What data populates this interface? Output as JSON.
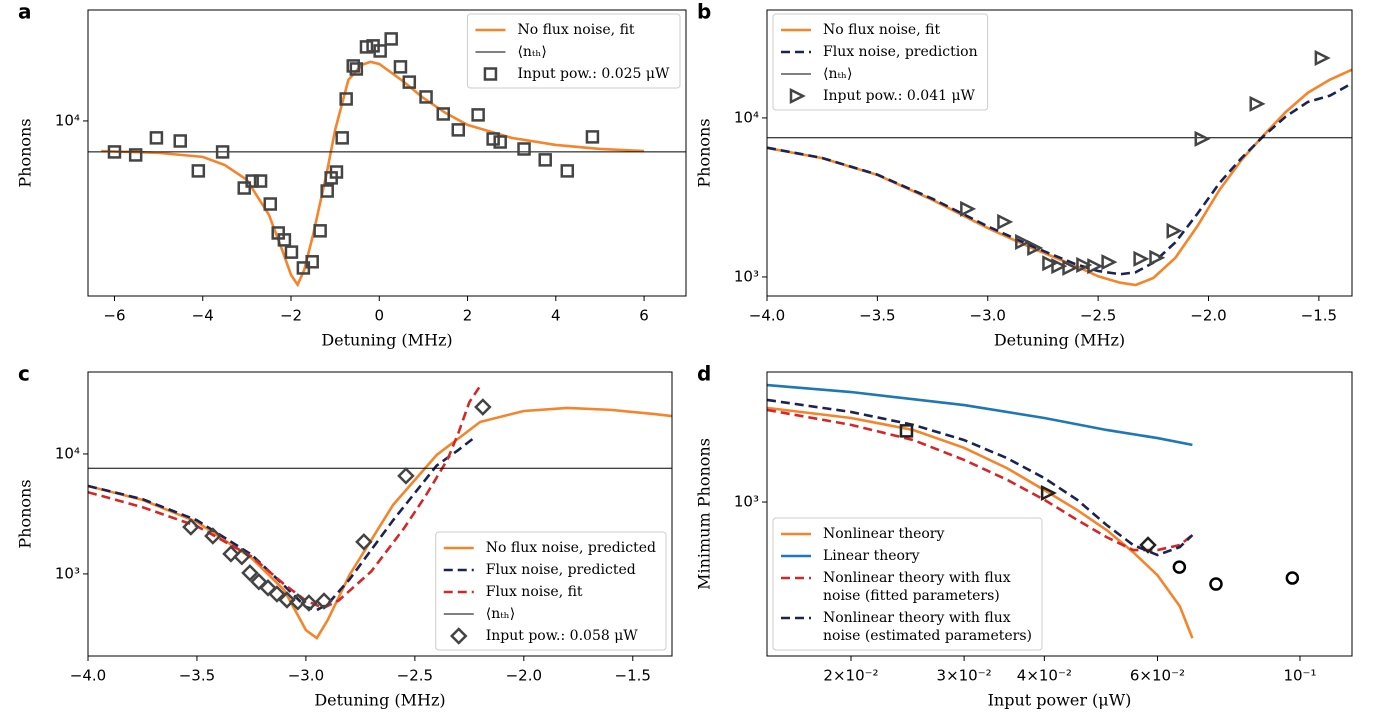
{
  "chart_data": [
    {
      "type": "line",
      "panel_label": "a",
      "xlabel": "Detuning (MHz)",
      "ylabel": "Phonons",
      "xlim": [
        -6.6,
        6.95
      ],
      "ylim": [
        2370,
        24900
      ],
      "yscale": "log",
      "legend": "upper right",
      "xticks": [
        {
          "value": -6,
          "label": "−6"
        },
        {
          "value": -4,
          "label": "−4"
        },
        {
          "value": -2,
          "label": "−2"
        },
        0,
        2,
        4,
        6
      ],
      "yticks": [
        {
          "value": 10000,
          "label": "10⁴"
        }
      ],
      "series": [
        {
          "name": "No flux noise, fit",
          "kind": "line",
          "color": "#f5842a",
          "x": [
            -6.3,
            -5,
            -4,
            -3.5,
            -3,
            -2.5,
            -2.2,
            -2,
            -1.85,
            -1.7,
            -1.5,
            -1.2,
            -1,
            -0.7,
            -0.4,
            -0.2,
            0,
            0.5,
            1,
            1.5,
            2,
            3,
            4,
            5,
            6
          ],
          "values": [
            7810,
            7690,
            7440,
            6960,
            6160,
            4620,
            3460,
            2820,
            2600,
            2940,
            3920,
            6410,
            9290,
            14010,
            15850,
            16250,
            15980,
            14010,
            12080,
            10680,
            9680,
            8700,
            8210,
            7940,
            7810
          ]
        },
        {
          "name": "⟨nₜₕ⟩",
          "kind": "hline",
          "color": "#000000",
          "values": [
            7750
          ]
        },
        {
          "name": "Input pow.: 0.025 μW",
          "kind": "marker",
          "marker": "square",
          "color": "#444444",
          "x": [
            -6.0,
            -5.52,
            -5.05,
            -4.51,
            -4.1,
            -3.55,
            -3.06,
            -2.88,
            -2.69,
            -2.47,
            -2.29,
            -2.15,
            -1.99,
            -1.72,
            -1.52,
            -1.34,
            -1.18,
            -1.09,
            -0.97,
            -0.84,
            -0.75,
            -0.59,
            -0.52,
            -0.29,
            -0.14,
            0.02,
            0.27,
            0.48,
            0.68,
            1.06,
            1.45,
            1.79,
            2.24,
            2.58,
            2.74,
            3.28,
            3.76,
            4.26,
            4.83
          ],
          "values": [
            7750,
            7560,
            8700,
            8480,
            6630,
            7750,
            5760,
            6100,
            6100,
            5050,
            3980,
            3760,
            3400,
            2985,
            3140,
            4050,
            5620,
            6260,
            6570,
            8700,
            11980,
            15720,
            15330,
            18380,
            18540,
            17780,
            19630,
            15600,
            13760,
            12180,
            10590,
            9290,
            10510,
            8620,
            8410,
            7940,
            7260,
            6630,
            8770
          ]
        }
      ]
    },
    {
      "type": "line",
      "panel_label": "b",
      "xlabel": "Detuning (MHz)",
      "ylabel": "Phonons",
      "xlim": [
        -4,
        -1.35
      ],
      "ylim": [
        759,
        47700
      ],
      "yscale": "log",
      "legend": "upper left",
      "xticks": [
        {
          "value": -4,
          "label": "−4.0"
        },
        {
          "value": -3.5,
          "label": "−3.5"
        },
        {
          "value": -3,
          "label": "−3.0"
        },
        {
          "value": -2.5,
          "label": "−2.5"
        },
        {
          "value": -2,
          "label": "−2.0"
        },
        {
          "value": -1.5,
          "label": "−1.5"
        }
      ],
      "yticks": [
        {
          "value": 1000,
          "label": "10³"
        },
        {
          "value": 10000,
          "label": "10⁴"
        }
      ],
      "series": [
        {
          "name": "No flux noise, fit",
          "kind": "line",
          "color": "#f5842a",
          "x": [
            -4,
            -3.75,
            -3.5,
            -3.25,
            -3,
            -2.8,
            -2.6,
            -2.5,
            -2.4,
            -2.33,
            -2.25,
            -2.15,
            -2.05,
            -1.95,
            -1.85,
            -1.75,
            -1.65,
            -1.55,
            -1.45,
            -1.35
          ],
          "values": [
            6470,
            5590,
            4380,
            3050,
            2030,
            1520,
            1170,
            1010,
            920,
            890,
            985,
            1320,
            2090,
            3530,
            5450,
            7800,
            10900,
            14400,
            17400,
            20100
          ]
        },
        {
          "name": "Flux noise, prediction",
          "kind": "dashed",
          "color": "#1a2355",
          "x": [
            -4,
            -3.75,
            -3.5,
            -3.25,
            -3,
            -2.8,
            -2.6,
            -2.5,
            -2.4,
            -2.33,
            -2.25,
            -2.15,
            -2.05,
            -1.95,
            -1.85,
            -1.75,
            -1.65,
            -1.55,
            -1.45,
            -1.35
          ],
          "values": [
            6500,
            5600,
            4400,
            3100,
            2080,
            1560,
            1200,
            1090,
            1040,
            1070,
            1230,
            1650,
            2500,
            3900,
            5600,
            7700,
            10200,
            12600,
            13800,
            16500
          ]
        },
        {
          "name": "⟨nₜₕ⟩",
          "kind": "hline",
          "color": "#000000",
          "values": [
            7500
          ]
        },
        {
          "name": "Input pow.: 0.041 μW",
          "kind": "marker",
          "marker": "triangle",
          "color": "#444444",
          "x": [
            -3.097,
            -2.929,
            -2.848,
            -2.793,
            -2.725,
            -2.684,
            -2.634,
            -2.571,
            -2.521,
            -2.457,
            -2.312,
            -2.24,
            -2.162,
            -2.035,
            -1.786,
            -1.491
          ],
          "values": [
            2680,
            2220,
            1660,
            1520,
            1220,
            1170,
            1140,
            1190,
            1170,
            1240,
            1300,
            1320,
            1950,
            7380,
            12250,
            23800
          ]
        }
      ]
    },
    {
      "type": "line",
      "panel_label": "c",
      "xlabel": "Detuning (MHz)",
      "ylabel": "Phonons",
      "xlim": [
        -4,
        -1.32
      ],
      "ylim": [
        207,
        48200
      ],
      "yscale": "log",
      "legend": "lower right",
      "xticks": [
        {
          "value": -4,
          "label": "−4.0"
        },
        {
          "value": -3.5,
          "label": "−3.5"
        },
        {
          "value": -3,
          "label": "−3.0"
        },
        {
          "value": -2.5,
          "label": "−2.5"
        },
        {
          "value": -2,
          "label": "−2.0"
        },
        {
          "value": -1.5,
          "label": "−1.5"
        }
      ],
      "yticks": [
        {
          "value": 1000,
          "label": "10³"
        },
        {
          "value": 10000,
          "label": "10⁴"
        }
      ],
      "series": [
        {
          "name": "No flux noise, predicted",
          "kind": "line",
          "color": "#f5842a",
          "x": [
            -4,
            -3.75,
            -3.5,
            -3.25,
            -3.1,
            -3.0,
            -2.95,
            -2.9,
            -2.8,
            -2.6,
            -2.4,
            -2.2,
            -2.0,
            -1.8,
            -1.6,
            -1.4,
            -1.32
          ],
          "values": [
            5410,
            4140,
            2710,
            1360,
            735,
            340,
            292,
            413,
            980,
            3760,
            9800,
            18500,
            22800,
            24200,
            23300,
            21500,
            20700
          ]
        },
        {
          "name": "Flux noise, predicted",
          "kind": "dashed",
          "color": "#1a2355",
          "x": [
            -4,
            -3.75,
            -3.5,
            -3.25,
            -3.1,
            -3.0,
            -2.95,
            -2.9,
            -2.8,
            -2.6,
            -2.4,
            -2.3,
            -2.22
          ],
          "values": [
            5410,
            4200,
            2800,
            1450,
            800,
            530,
            500,
            560,
            900,
            2800,
            8000,
            10800,
            14000
          ]
        },
        {
          "name": "Flux noise, fit",
          "kind": "dashed",
          "color": "#d62728",
          "x": [
            -4,
            -3.75,
            -3.5,
            -3.25,
            -3.1,
            -3.0,
            -2.92,
            -2.85,
            -2.7,
            -2.55,
            -2.45,
            -2.35,
            -2.3,
            -2.25,
            -2.2
          ],
          "values": [
            4800,
            3600,
            2500,
            1400,
            820,
            600,
            520,
            600,
            1050,
            2400,
            4500,
            9000,
            15000,
            27000,
            37000
          ]
        },
        {
          "name": "⟨nₜₕ⟩",
          "kind": "hline",
          "color": "#000000",
          "values": [
            7600
          ]
        },
        {
          "name": "Input pow.: 0.058 μW",
          "kind": "marker",
          "marker": "diamond",
          "color": "#444444",
          "x": [
            -3.528,
            -3.427,
            -3.344,
            -3.294,
            -3.257,
            -3.216,
            -3.174,
            -3.133,
            -3.087,
            -3.037,
            -2.986,
            -2.917,
            -2.734,
            -2.541,
            -2.188
          ],
          "values": [
            2460,
            2070,
            1470,
            1390,
            1020,
            860,
            765,
            680,
            607,
            585,
            573,
            595,
            1850,
            6560,
            24600
          ]
        }
      ]
    },
    {
      "type": "line",
      "panel_label": "d",
      "xlabel": "Input power (μW)",
      "ylabel": "Minimum Phonons",
      "xlim": [
        0.0148,
        0.1205
      ],
      "ylim": [
        132,
        5530
      ],
      "xscale": "log",
      "yscale": "log",
      "legend": "lower left",
      "xticks": [
        {
          "value": 0.02,
          "label": "2×10⁻²"
        },
        {
          "value": 0.03,
          "label": "3×10⁻²"
        },
        {
          "value": 0.04,
          "label": "4×10⁻²"
        },
        {
          "value": 0.06,
          "label": "6×10⁻²"
        },
        {
          "value": 0.1,
          "label": "10⁻¹"
        }
      ],
      "yticks": [
        {
          "value": 1000,
          "label": "10³"
        }
      ],
      "series": [
        {
          "name": "Nonlinear theory",
          "kind": "line",
          "color": "#f5842a",
          "x": [
            0.0148,
            0.02,
            0.025,
            0.03,
            0.035,
            0.04,
            0.045,
            0.05,
            0.055,
            0.06,
            0.065,
            0.068
          ],
          "values": [
            3450,
            3020,
            2580,
            2040,
            1560,
            1170,
            900,
            692,
            517,
            382,
            254,
            167
          ]
        },
        {
          "name": "Linear theory",
          "kind": "line",
          "color": "#1f77b4",
          "x": [
            0.0148,
            0.02,
            0.03,
            0.04,
            0.05,
            0.06,
            0.068
          ],
          "values": [
            4660,
            4250,
            3580,
            3020,
            2580,
            2320,
            2120
          ]
        },
        {
          "name": "Nonlinear theory with flux\nnoise (fitted parameters)",
          "kind": "dashed",
          "color": "#d62728",
          "x": [
            0.0148,
            0.02,
            0.025,
            0.03,
            0.035,
            0.04,
            0.045,
            0.05,
            0.055,
            0.06,
            0.065,
            0.068
          ],
          "values": [
            3360,
            2760,
            2260,
            1740,
            1340,
            1030,
            790,
            630,
            532,
            532,
            568,
            648
          ]
        },
        {
          "name": "Nonlinear theory with flux\nnoise (estimated parameters)",
          "kind": "dashed",
          "color": "#1a2355",
          "x": [
            0.0148,
            0.02,
            0.025,
            0.03,
            0.035,
            0.04,
            0.045,
            0.05,
            0.055,
            0.06,
            0.065,
            0.068
          ],
          "values": [
            3830,
            3270,
            2760,
            2260,
            1780,
            1370,
            1030,
            739,
            568,
            498,
            553,
            648
          ]
        },
        {
          "kind": "marker",
          "marker": "square",
          "color": "#222222",
          "x": [
            0.0244
          ],
          "values": [
            2550
          ]
        },
        {
          "kind": "marker",
          "marker": "triangle",
          "color": "#222222",
          "x": [
            0.0404
          ],
          "values": [
            1126
          ]
        },
        {
          "kind": "marker",
          "marker": "diamond",
          "color": "#222222",
          "x": [
            0.058
          ],
          "values": [
            568
          ]
        },
        {
          "kind": "marker",
          "marker": "circle",
          "color": "#000000",
          "x": [
            0.0649,
            0.074,
            0.0973
          ],
          "values": [
            425,
            340,
            368
          ]
        }
      ]
    }
  ]
}
